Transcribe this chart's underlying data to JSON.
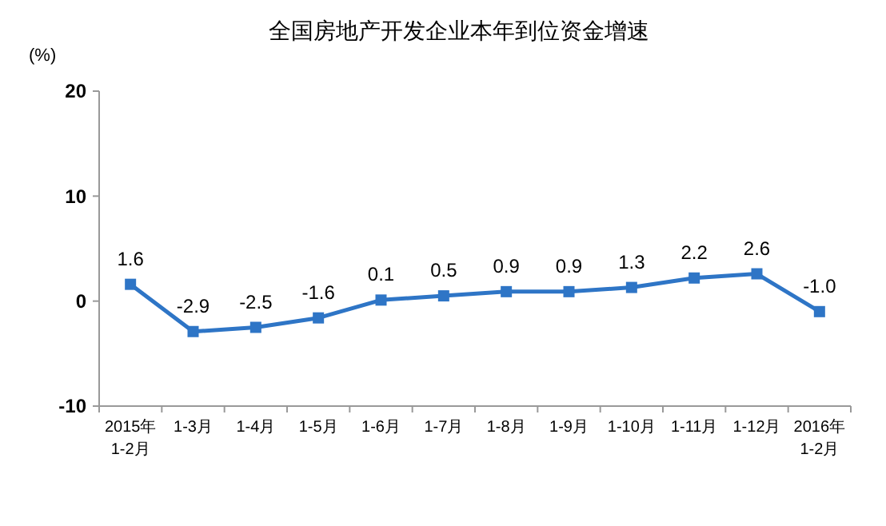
{
  "chart_data": {
    "type": "line",
    "title": "全国房地产开发企业本年到位资金增速",
    "ylabel": "(%)",
    "categories": [
      "2015年\n1-2月",
      "1-3月",
      "1-4月",
      "1-5月",
      "1-6月",
      "1-7月",
      "1-8月",
      "1-9月",
      "1-10月",
      "1-11月",
      "1-12月",
      "2016年\n1-2月"
    ],
    "series": [
      {
        "color": "#2e75c6",
        "values": [
          1.6,
          -2.9,
          -2.5,
          -1.6,
          0.1,
          0.5,
          0.9,
          0.9,
          1.3,
          2.2,
          2.6,
          -1.0
        ],
        "value_labels": [
          "1.6",
          "-2.9",
          "-2.5",
          "-1.6",
          "0.1",
          "0.5",
          "0.9",
          "0.9",
          "1.3",
          "2.2",
          "2.6",
          "-1.0"
        ]
      }
    ],
    "ylim": [
      -10,
      20
    ],
    "yticks": [
      -10,
      0,
      10,
      20
    ],
    "grid": false,
    "marker": "square",
    "line_style": "solid"
  }
}
